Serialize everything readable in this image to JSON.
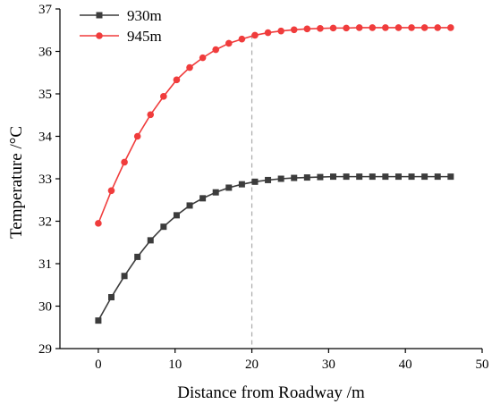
{
  "chart_data": {
    "type": "line",
    "xlabel": "Distance from Roadway /m",
    "ylabel": "Temperature /°C",
    "xlim": [
      -5,
      50
    ],
    "ylim": [
      29,
      37
    ],
    "xticks": [
      "0",
      "10",
      "20",
      "30",
      "40",
      "50"
    ],
    "yticks": [
      "29",
      "30",
      "31",
      "32",
      "33",
      "34",
      "35",
      "36",
      "37"
    ],
    "grid": false,
    "legend_position": "top-left",
    "reference_line": {
      "x": 20,
      "style": "dashed",
      "color": "#aaaaaa"
    },
    "series": [
      {
        "name": "930m",
        "color": "#3c3c3c",
        "marker": "square",
        "x": [
          0,
          1.7,
          3.4,
          5.1,
          6.8,
          8.5,
          10.2,
          11.9,
          13.6,
          15.3,
          17.0,
          18.7,
          20.4,
          22.1,
          23.8,
          25.5,
          27.2,
          28.9,
          30.6,
          32.3,
          34.0,
          35.7,
          37.4,
          39.1,
          40.8,
          42.5,
          44.2,
          45.9
        ],
        "values": [
          29.66,
          30.21,
          30.71,
          31.16,
          31.55,
          31.87,
          32.14,
          32.37,
          32.54,
          32.68,
          32.79,
          32.87,
          32.93,
          32.97,
          33.0,
          33.02,
          33.03,
          33.04,
          33.05,
          33.05,
          33.05,
          33.05,
          33.05,
          33.05,
          33.05,
          33.05,
          33.05,
          33.05
        ]
      },
      {
        "name": "945m",
        "color": "#f03c3c",
        "marker": "circle",
        "x": [
          0,
          1.7,
          3.4,
          5.1,
          6.8,
          8.5,
          10.2,
          11.9,
          13.6,
          15.3,
          17.0,
          18.7,
          20.4,
          22.1,
          23.8,
          25.5,
          27.2,
          28.9,
          30.6,
          32.3,
          34.0,
          35.7,
          37.4,
          39.1,
          40.8,
          42.5,
          44.2,
          45.9
        ],
        "values": [
          31.95,
          32.72,
          33.39,
          34.0,
          34.51,
          34.94,
          35.33,
          35.62,
          35.85,
          36.04,
          36.19,
          36.29,
          36.38,
          36.44,
          36.48,
          36.51,
          36.53,
          36.54,
          36.55,
          36.55,
          36.56,
          36.56,
          36.56,
          36.56,
          36.56,
          36.56,
          36.56,
          36.56
        ]
      }
    ]
  }
}
